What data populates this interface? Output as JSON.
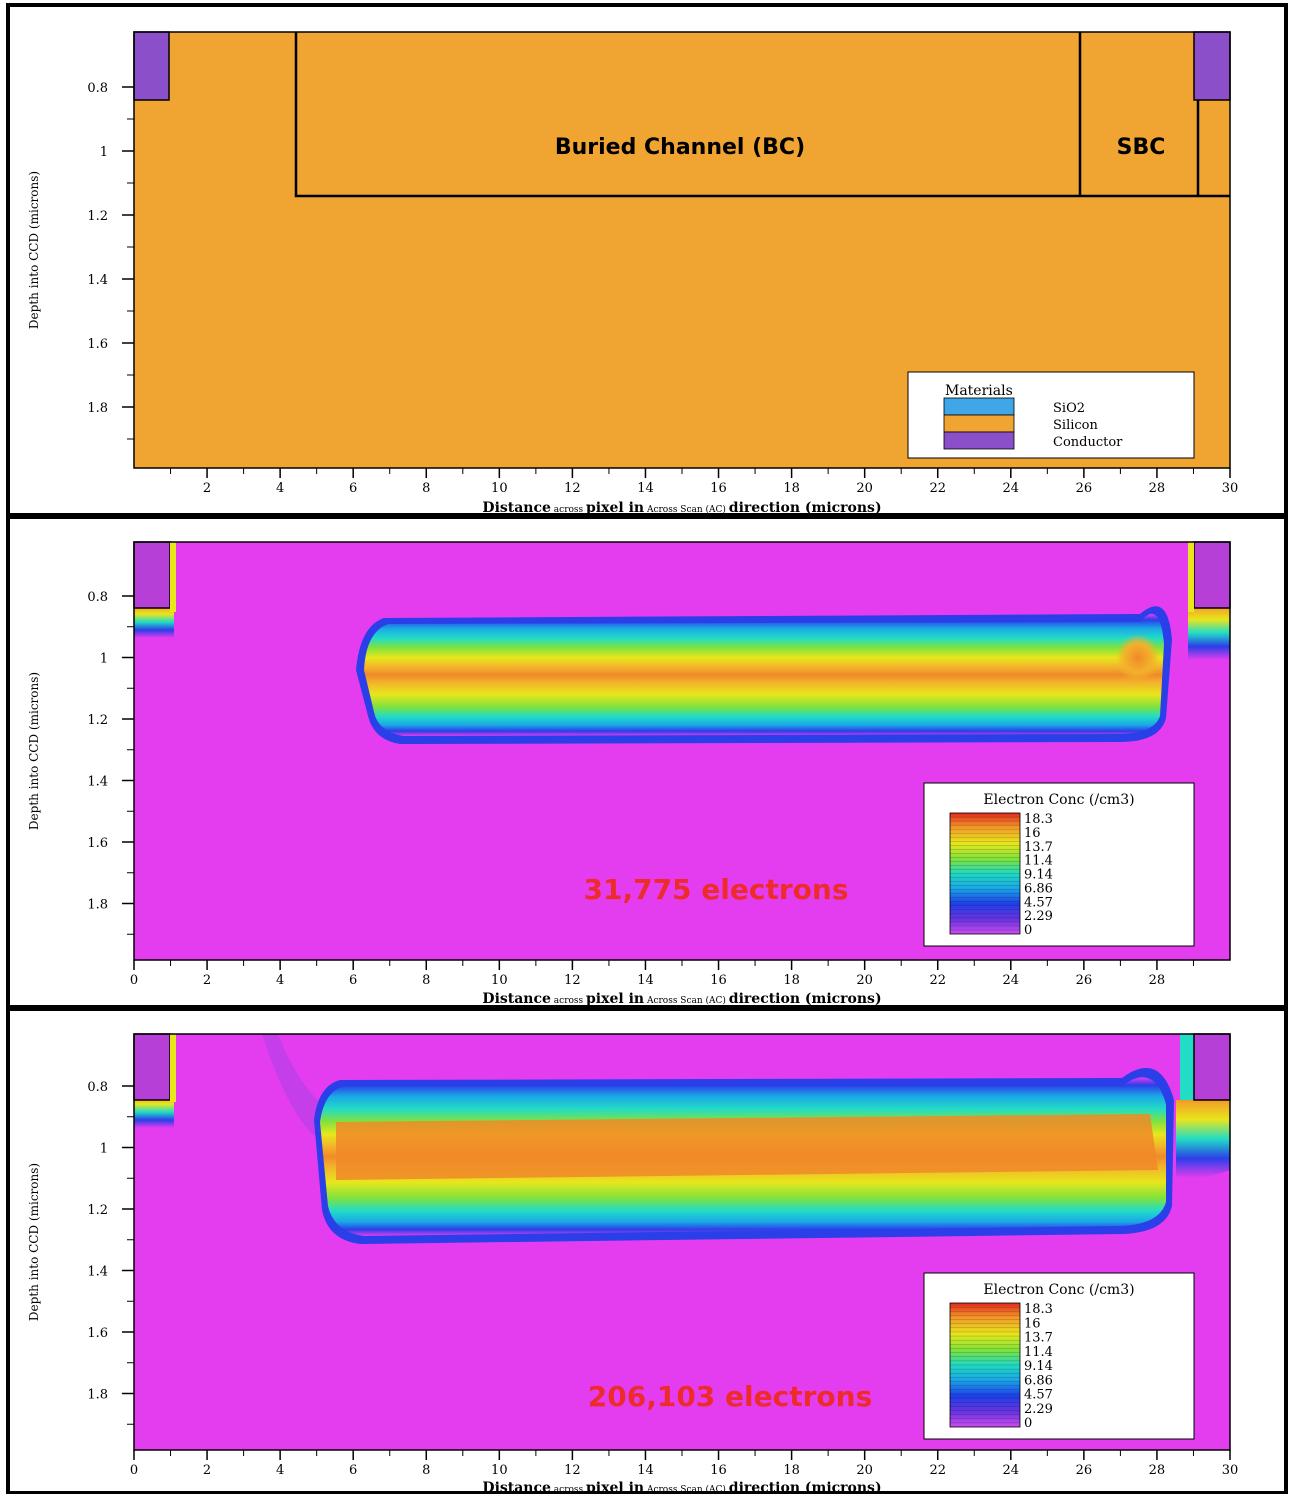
{
  "panels": [
    {
      "id": "materials",
      "ylabel": "Depth into CCD (microns)",
      "xlabel": {
        "part1": "Distance",
        "part2": "across",
        "part3": "pixel in",
        "part4": "Across Scan (AC)",
        "part5": "direction (microns)"
      },
      "y_ticks": [
        "0.8",
        "1",
        "1.2",
        "1.4",
        "1.6",
        "1.8"
      ],
      "x_ticks": [
        "2",
        "4",
        "6",
        "8",
        "10",
        "12",
        "14",
        "16",
        "18",
        "20",
        "22",
        "24",
        "26",
        "28",
        "30"
      ],
      "region_labels": {
        "bc": "Buried Channel (BC)",
        "sbc": "SBC"
      },
      "legend": {
        "title": "Materials",
        "items": [
          {
            "label": "SiO2",
            "color": "#3fa6e8"
          },
          {
            "label": "Silicon",
            "color": "#f0a432"
          },
          {
            "label": "Conductor",
            "color": "#8a4fc9"
          }
        ]
      }
    },
    {
      "id": "conc1",
      "ylabel": "Depth into CCD (microns)",
      "xlabel": {
        "part1": "Distance",
        "part2": "across",
        "part3": "pixel in",
        "part4": "Across Scan (AC)",
        "part5": "direction (microns)"
      },
      "y_ticks": [
        "0.8",
        "1",
        "1.2",
        "1.4",
        "1.6",
        "1.8"
      ],
      "x_ticks": [
        "0",
        "2",
        "4",
        "6",
        "8",
        "10",
        "12",
        "14",
        "16",
        "18",
        "20",
        "22",
        "24",
        "26",
        "28"
      ],
      "annotation": "31,775 electrons",
      "legend": {
        "title": "Electron Conc (/cm3)",
        "levels": [
          "18.3",
          "16",
          "13.7",
          "11.4",
          "9.14",
          "6.86",
          "4.57",
          "2.29",
          "0"
        ]
      }
    },
    {
      "id": "conc2",
      "ylabel": "Depth into CCD (microns)",
      "xlabel": {
        "part1": "Distance",
        "part2": "across",
        "part3": "pixel in",
        "part4": "Across Scan (AC)",
        "part5": "direction (microns)"
      },
      "y_ticks": [
        "0.8",
        "1",
        "1.2",
        "1.4",
        "1.6",
        "1.8"
      ],
      "x_ticks": [
        "0",
        "2",
        "4",
        "6",
        "8",
        "10",
        "12",
        "14",
        "16",
        "18",
        "20",
        "22",
        "24",
        "26",
        "28",
        "30"
      ],
      "annotation": "206,103 electrons",
      "legend": {
        "title": "Electron Conc (/cm3)",
        "levels": [
          "18.3",
          "16",
          "13.7",
          "11.4",
          "9.14",
          "6.86",
          "4.57",
          "2.29",
          "0"
        ]
      }
    }
  ],
  "chart_data": [
    {
      "type": "heatmap",
      "xlabel": "Distance across pixel in Across Scan (AC) direction (microns)",
      "ylabel": "Depth into CCD (microns)",
      "xlim": [
        0,
        30
      ],
      "ylim": [
        0.6,
        2.0
      ],
      "legend_title": "Materials",
      "regions": [
        {
          "label": "Buried Channel (BC)",
          "x": [
            4.5,
            25.9
          ],
          "y": [
            0.6,
            1.14
          ]
        },
        {
          "label": "SBC",
          "x": [
            25.9,
            29.1
          ],
          "y": [
            0.6,
            1.14
          ]
        }
      ],
      "materials": [
        {
          "name": "SiO2",
          "color": "#3fa6e8"
        },
        {
          "name": "Silicon",
          "color": "#f0a432"
        },
        {
          "name": "Conductor",
          "color": "#8a4fc9",
          "regions": [
            {
              "x": [
                0,
                0.9
              ],
              "y": [
                0.6,
                0.84
              ]
            },
            {
              "x": [
                29.0,
                30
              ],
              "y": [
                0.6,
                0.84
              ]
            }
          ]
        }
      ]
    },
    {
      "type": "heatmap",
      "xlabel": "Distance across pixel in Across Scan (AC) direction (microns)",
      "ylabel": "Depth into CCD (microns)",
      "xlim": [
        0,
        30
      ],
      "ylim": [
        0.6,
        2.0
      ],
      "legend_title": "Electron Conc (/cm3)",
      "levels": [
        18.3,
        16,
        13.7,
        11.4,
        9.14,
        6.86,
        4.57,
        2.29,
        0
      ],
      "annotation": "31,775 electrons",
      "charge_packet": {
        "x": [
          6.2,
          28.2
        ],
        "y": [
          0.87,
          1.24
        ],
        "peak_depth": 1.05,
        "peak_level": 16
      }
    },
    {
      "type": "heatmap",
      "xlabel": "Distance across pixel in Across Scan (AC) direction (microns)",
      "ylabel": "Depth into CCD (microns)",
      "xlim": [
        0,
        30
      ],
      "ylim": [
        0.6,
        2.0
      ],
      "legend_title": "Electron Conc (/cm3)",
      "levels": [
        18.3,
        16,
        13.7,
        11.4,
        9.14,
        6.86,
        4.57,
        2.29,
        0
      ],
      "annotation": "206,103 electrons",
      "charge_packet": {
        "x": [
          5.0,
          28.4
        ],
        "y": [
          0.83,
          1.29
        ],
        "peak_depth": 1.03,
        "peak_level": 16
      }
    }
  ],
  "colors": {
    "silicon": "#f0a432",
    "background_conc": "#e43df0",
    "conductor": "#8a4fc9",
    "annotation": "#ee2b2b",
    "frame": "#000000"
  }
}
